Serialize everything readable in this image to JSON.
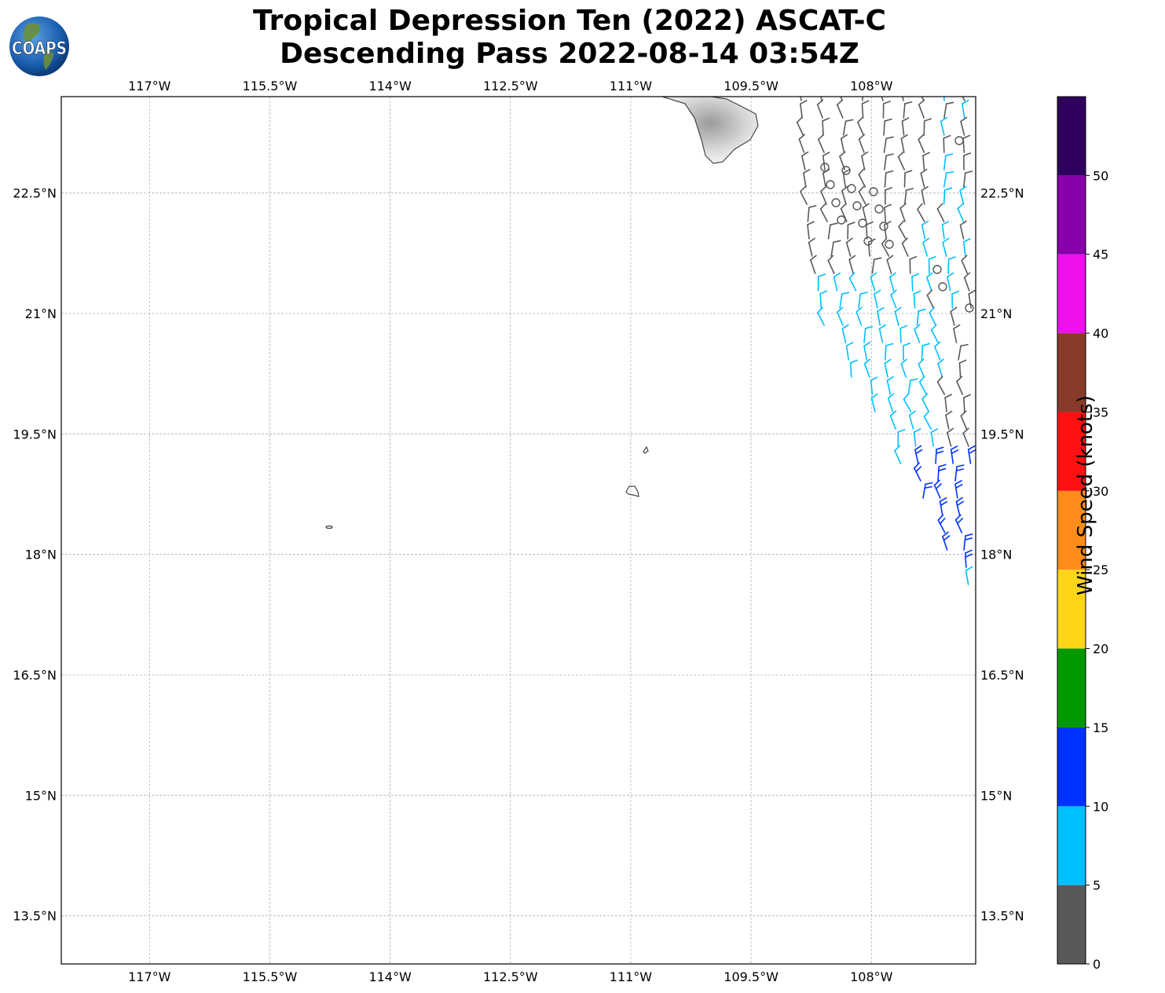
{
  "header": {
    "title_line1": "Tropical Depression Ten (2022) ASCAT-C",
    "title_line2": "Descending Pass 2022-08-14 03:54Z",
    "logo_text": "COAPS"
  },
  "map": {
    "lon_ticks": [
      "117°W",
      "115.5°W",
      "114°W",
      "112.5°W",
      "111°W",
      "109.5°W",
      "108°W"
    ],
    "lat_ticks": [
      "22.5°N",
      "21°N",
      "19.5°N",
      "18°N",
      "16.5°N",
      "15°N",
      "13.5°N"
    ],
    "lon_range": [
      -118.1,
      -106.7
    ],
    "lat_range": [
      12.9,
      23.7
    ],
    "grid": true
  },
  "colorbar": {
    "label": "Wind Speed (knots)",
    "ticks": [
      "0",
      "5",
      "10",
      "15",
      "20",
      "25",
      "30",
      "35",
      "40",
      "45",
      "50"
    ],
    "colors": [
      "#595959",
      "#00bfff",
      "#0033ff",
      "#009900",
      "#ffd51a",
      "#ff8c1a",
      "#ff1111",
      "#883b2a",
      "#ee11ee",
      "#8800aa",
      "#2f005f"
    ]
  }
}
